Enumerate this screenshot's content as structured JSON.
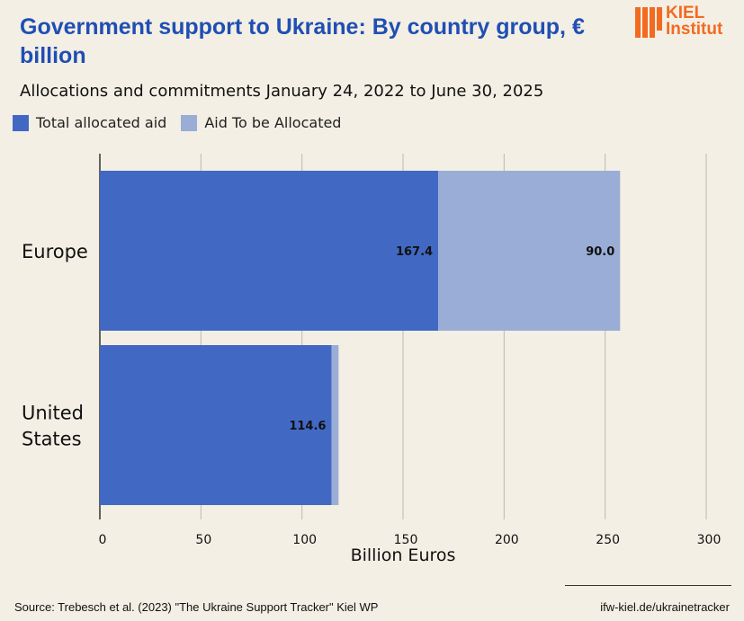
{
  "header": {
    "title": "Government support to Ukraine: By country group, € billion",
    "subtitle": "Allocations and commitments January 24, 2022 to June 30, 2025"
  },
  "logo": {
    "line1": "KIEL",
    "line2": "Institut",
    "color": "#f26b21"
  },
  "legend": [
    {
      "label": "Total allocated aid",
      "color": "#4169c4"
    },
    {
      "label": "Aid To be Allocated",
      "color": "#9aadd6"
    }
  ],
  "chart_data": {
    "type": "bar",
    "orientation": "horizontal",
    "stacked": true,
    "categories": [
      "Europe",
      "United States"
    ],
    "category_display": [
      [
        "Europe"
      ],
      [
        "United",
        "States"
      ]
    ],
    "series": [
      {
        "name": "Total allocated aid",
        "values": [
          167.4,
          114.6
        ],
        "labels": [
          "167.4",
          "114.6"
        ],
        "color": "#4169c4"
      },
      {
        "name": "Aid To be Allocated",
        "values": [
          90.0,
          3.5
        ],
        "labels": [
          "90.0",
          ""
        ],
        "color": "#9aadd6"
      }
    ],
    "xlabel": "Billion Euros",
    "xlim": [
      0,
      300
    ],
    "xticks": [
      0,
      50,
      100,
      150,
      200,
      250,
      300
    ],
    "grid": true
  },
  "footer": {
    "source": "Source: Trebesch et al. (2023) \"The Ukraine Support Tracker\" Kiel WP",
    "url": "ifw-kiel.de/ukrainetracker"
  }
}
